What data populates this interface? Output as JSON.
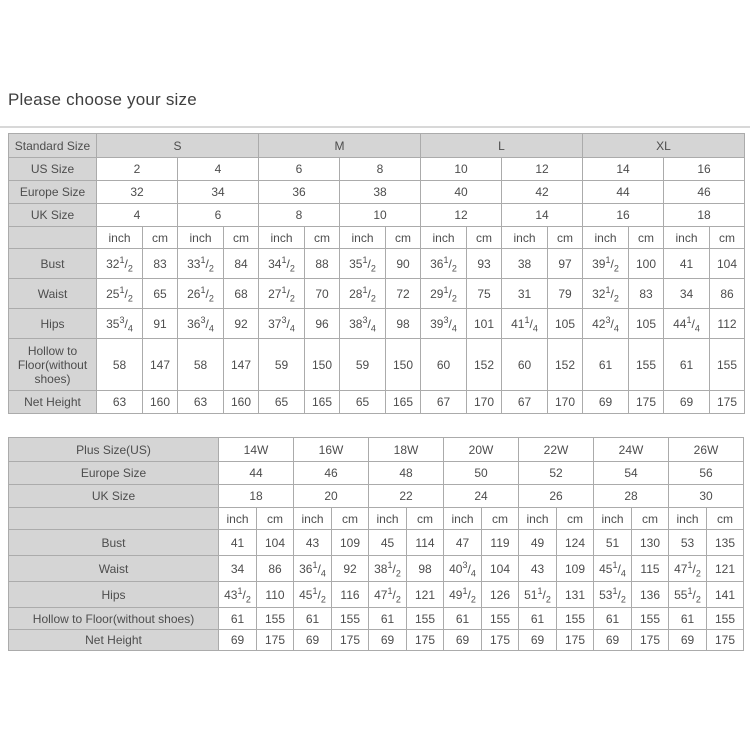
{
  "page": {
    "title": "Please choose your size"
  },
  "colors": {
    "header_bg": "#d5d5d5",
    "border": "#ababab",
    "text": "#4d4d4d",
    "background": "#ffffff"
  },
  "tables": [
    {
      "id": "table-standard",
      "name": "standard-size-table",
      "pairs": 8,
      "units": [
        "inch",
        "cm"
      ],
      "header_rows": [
        {
          "label": "Standard Size",
          "values": [
            "S",
            "M",
            "L",
            "XL"
          ],
          "values_shaded": true
        },
        {
          "label": "US Size",
          "values": [
            "2",
            "4",
            "6",
            "8",
            "10",
            "12",
            "14",
            "16"
          ],
          "values_shaded": false
        },
        {
          "label": "Europe Size",
          "values": [
            "32",
            "34",
            "36",
            "38",
            "40",
            "42",
            "44",
            "46"
          ],
          "values_shaded": false
        },
        {
          "label": "UK Size",
          "values": [
            "4",
            "6",
            "8",
            "10",
            "12",
            "14",
            "16",
            "18"
          ],
          "values_shaded": false
        }
      ],
      "measurement_rows": [
        {
          "label": "Bust",
          "values": [
            "32 1/2",
            "83",
            "33 1/2",
            "84",
            "34 1/2",
            "88",
            "35 1/2",
            "90",
            "36 1/2",
            "93",
            "38",
            "97",
            "39 1/2",
            "100",
            "41",
            "104"
          ]
        },
        {
          "label": "Waist",
          "values": [
            "25 1/2",
            "65",
            "26 1/2",
            "68",
            "27 1/2",
            "70",
            "28 1/2",
            "72",
            "29 1/2",
            "75",
            "31",
            "79",
            "32 1/2",
            "83",
            "34",
            "86"
          ]
        },
        {
          "label": "Hips",
          "values": [
            "35 3/4",
            "91",
            "36 3/4",
            "92",
            "37 3/4",
            "96",
            "38 3/4",
            "98",
            "39 3/4",
            "101",
            "41 1/4",
            "105",
            "42 3/4",
            "105",
            "44 1/4",
            "112"
          ]
        },
        {
          "label": "Hollow to Floor(without shoes)",
          "values": [
            "58",
            "147",
            "58",
            "147",
            "59",
            "150",
            "59",
            "150",
            "60",
            "152",
            "60",
            "152",
            "61",
            "155",
            "61",
            "155"
          ]
        },
        {
          "label": "Net Height",
          "values": [
            "63",
            "160",
            "63",
            "160",
            "65",
            "165",
            "65",
            "165",
            "67",
            "170",
            "67",
            "170",
            "69",
            "175",
            "69",
            "175"
          ]
        }
      ]
    },
    {
      "id": "table-plus",
      "name": "plus-size-table",
      "pairs": 7,
      "units": [
        "inch",
        "cm"
      ],
      "header_rows": [
        {
          "label": "Plus Size(US)",
          "values": [
            "14W",
            "16W",
            "18W",
            "20W",
            "22W",
            "24W",
            "26W"
          ],
          "values_shaded": false
        },
        {
          "label": "Europe Size",
          "values": [
            "44",
            "46",
            "48",
            "50",
            "52",
            "54",
            "56"
          ],
          "values_shaded": false
        },
        {
          "label": "UK Size",
          "values": [
            "18",
            "20",
            "22",
            "24",
            "26",
            "28",
            "30"
          ],
          "values_shaded": false
        }
      ],
      "measurement_rows": [
        {
          "label": "Bust",
          "values": [
            "41",
            "104",
            "43",
            "109",
            "45",
            "114",
            "47",
            "119",
            "49",
            "124",
            "51",
            "130",
            "53",
            "135"
          ]
        },
        {
          "label": "Waist",
          "values": [
            "34",
            "86",
            "36 1/4",
            "92",
            "38 1/2",
            "98",
            "40 3/4",
            "104",
            "43",
            "109",
            "45 1/4",
            "115",
            "47 1/2",
            "121"
          ]
        },
        {
          "label": "Hips",
          "values": [
            "43 1/2",
            "110",
            "45 1/2",
            "116",
            "47 1/2",
            "121",
            "49 1/2",
            "126",
            "51 1/2",
            "131",
            "53 1/2",
            "136",
            "55 1/2",
            "141"
          ]
        },
        {
          "label": "Hollow to Floor(without shoes)",
          "values": [
            "61",
            "155",
            "61",
            "155",
            "61",
            "155",
            "61",
            "155",
            "61",
            "155",
            "61",
            "155",
            "61",
            "155"
          ]
        },
        {
          "label": "Net Height",
          "values": [
            "69",
            "175",
            "69",
            "175",
            "69",
            "175",
            "69",
            "175",
            "69",
            "175",
            "69",
            "175",
            "69",
            "175"
          ]
        }
      ]
    }
  ]
}
